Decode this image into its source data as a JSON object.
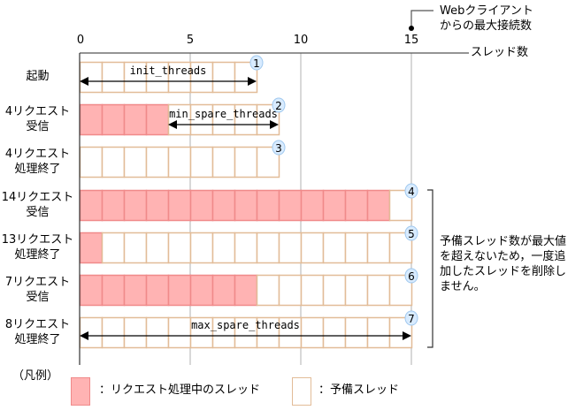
{
  "axis": {
    "label": "スレッド数",
    "ticks": [
      0,
      5,
      10,
      15
    ],
    "max": 15
  },
  "callout": {
    "line1": "Webクライアント",
    "line2": "からの最大接続数",
    "value": 15
  },
  "rows": [
    {
      "label1": "起動",
      "label2": "",
      "busy": 0,
      "total": 8,
      "badge": "1",
      "arrow": {
        "from": 0,
        "to": 8,
        "text": "init_threads"
      }
    },
    {
      "label1": "4リクエスト",
      "label2": "受信",
      "busy": 4,
      "total": 9,
      "badge": "2",
      "arrow": {
        "from": 4,
        "to": 9,
        "text": "min_spare_threads"
      }
    },
    {
      "label1": "4リクエスト",
      "label2": "処理終了",
      "busy": 0,
      "total": 9,
      "badge": "3"
    },
    {
      "label1": "14リクエスト",
      "label2": "受信",
      "busy": 14,
      "total": 15,
      "badge": "4"
    },
    {
      "label1": "13リクエスト",
      "label2": "処理終了",
      "busy": 1,
      "total": 15,
      "badge": "5"
    },
    {
      "label1": "7リクエスト",
      "label2": "受信",
      "busy": 8,
      "total": 15,
      "badge": "6"
    },
    {
      "label1": "8リクエスト",
      "label2": "処理終了",
      "busy": 0,
      "total": 15,
      "badge": "7",
      "arrow": {
        "from": 0,
        "to": 15,
        "text": "max_spare_threads"
      }
    }
  ],
  "note": [
    "予備スレッド数が最大値",
    "を超えないため，一度追",
    "加したスレッドを削除し",
    "ません。"
  ],
  "legend": {
    "title": "（凡例）",
    "busy_label": "：リクエスト処理中のスレッド",
    "spare_label": "：予備スレッド"
  },
  "colors": {
    "busy_fill": "#ffb3b3",
    "busy_border": "#f08a8a",
    "spare_border": "#e2bc98",
    "badge_fill": "#d8ebff",
    "badge_border": "#9fc8ee",
    "grid": "#b0b0b0"
  }
}
